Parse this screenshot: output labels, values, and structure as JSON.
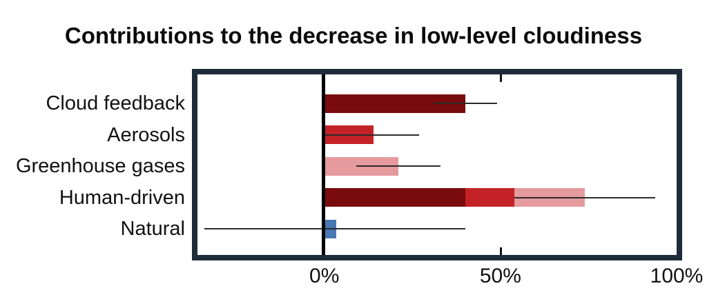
{
  "chart_data": {
    "type": "bar",
    "orientation": "horizontal",
    "title": "Contributions to the decrease in low-level cloudiness",
    "xlabel": "",
    "ylabel": "",
    "x_unit": "%",
    "xlim": [
      -36,
      100
    ],
    "grid": false,
    "legend": "none",
    "x_ticks": [
      {
        "value": 0,
        "label": "0%"
      },
      {
        "value": 50,
        "label": "50%"
      },
      {
        "value": 100,
        "label": "100%"
      }
    ],
    "tick_mark_values": [
      50
    ],
    "categories": [
      "Cloud feedback",
      "Aerosols",
      "Greenhouse gases",
      "Human-driven",
      "Natural"
    ],
    "rows": [
      {
        "label": "Cloud feedback",
        "total": 40,
        "error_low": 31,
        "error_high": 49,
        "segments": [
          {
            "color_key": "dark_red",
            "value": 40
          }
        ]
      },
      {
        "label": "Aerosols",
        "total": 14,
        "error_low": 0,
        "error_high": 27,
        "segments": [
          {
            "color_key": "red",
            "value": 14
          }
        ]
      },
      {
        "label": "Greenhouse gases",
        "total": 21,
        "error_low": 9,
        "error_high": 33,
        "segments": [
          {
            "color_key": "pink",
            "value": 21
          }
        ]
      },
      {
        "label": "Human-driven",
        "total": 74,
        "error_low": 54,
        "error_high": 94,
        "segments": [
          {
            "color_key": "dark_red",
            "value": 40
          },
          {
            "color_key": "red",
            "value": 14
          },
          {
            "color_key": "pink",
            "value": 20
          }
        ]
      },
      {
        "label": "Natural",
        "total": 3,
        "error_low": -34,
        "error_high": 40,
        "segments": [
          {
            "color_key": "blue",
            "value": 3.3
          }
        ]
      }
    ],
    "colors": {
      "dark_red": "#790b0c",
      "red": "#c32227",
      "pink": "#e59a9e",
      "blue": "#4877b3",
      "frame": "#1e2b38",
      "zero_line": "#000000",
      "error_bar": "#2a2a2a",
      "title_text": "#0a0a0a"
    }
  }
}
